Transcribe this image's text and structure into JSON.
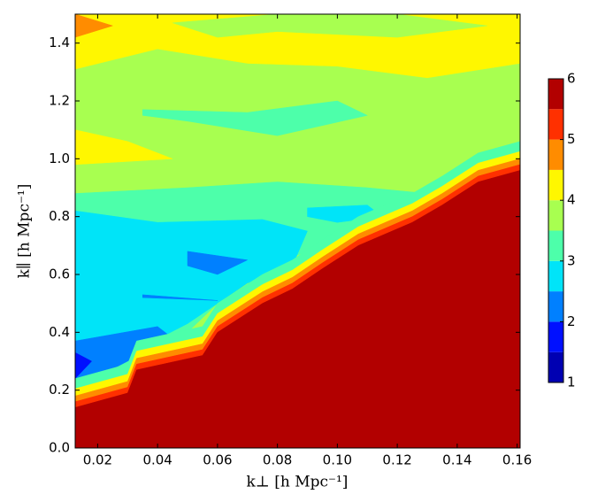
{
  "chart_data": {
    "type": "contourf",
    "xlabel": "k⊥ [h Mpc⁻¹]",
    "ylabel": "k∥ [h Mpc⁻¹]",
    "xlim": [
      0.0125,
      0.161
    ],
    "ylim": [
      0,
      1.5
    ],
    "xticks": [
      0.02,
      0.04,
      0.06,
      0.08,
      {
        "value": 0.1,
        "label": "0.10"
      },
      0.12,
      0.14,
      0.16
    ],
    "yticks": [
      {
        "value": 0,
        "label": "0.0"
      },
      0.2,
      0.4,
      0.6,
      0.8,
      {
        "value": 1,
        "label": "1.0"
      },
      1.2,
      1.4
    ],
    "colorbar": {
      "lim": [
        1,
        6
      ],
      "ticks": [
        1,
        2,
        3,
        4,
        5,
        6
      ],
      "levels": [
        1,
        1.5,
        2,
        2.5,
        3,
        3.5,
        4,
        4.5,
        5,
        5.5
      ],
      "colors": [
        "#0000b2",
        "#0010ff",
        "#0080ff",
        "#00e4f8",
        "#4dffaa",
        "#a8ff50",
        "#fff700",
        "#ff8c00",
        "#ff3000",
        "#b20000"
      ]
    },
    "regions": [
      {
        "level": 3.5,
        "points": [
          [
            0.0125,
            0
          ],
          [
            0.161,
            0
          ],
          [
            0.161,
            1.5
          ],
          [
            0.0125,
            1.5
          ]
        ]
      },
      {
        "level": 4,
        "points": [
          [
            0.0125,
            1.5
          ],
          [
            0.161,
            1.5
          ],
          [
            0.161,
            1.33
          ],
          [
            0.13,
            1.28
          ],
          [
            0.1,
            1.32
          ],
          [
            0.07,
            1.33
          ],
          [
            0.04,
            1.38
          ],
          [
            0.0125,
            1.31
          ]
        ]
      },
      {
        "level": 3.5,
        "points": [
          [
            0.045,
            1.47
          ],
          [
            0.08,
            1.5
          ],
          [
            0.12,
            1.5
          ],
          [
            0.15,
            1.46
          ],
          [
            0.12,
            1.42
          ],
          [
            0.08,
            1.44
          ],
          [
            0.06,
            1.42
          ]
        ]
      },
      {
        "level": 4.5,
        "points": [
          [
            0.0125,
            1.5
          ],
          [
            0.025,
            1.46
          ],
          [
            0.0125,
            1.42
          ]
        ]
      },
      {
        "level": 4,
        "points": [
          [
            0.0125,
            1.1
          ],
          [
            0.03,
            1.06
          ],
          [
            0.045,
            1.0
          ],
          [
            0.0125,
            0.98
          ]
        ]
      },
      {
        "level": 3,
        "points": [
          [
            0.0125,
            0.88
          ],
          [
            0.05,
            0.9
          ],
          [
            0.08,
            0.92
          ],
          [
            0.11,
            0.9
          ],
          [
            0.13,
            0.88
          ],
          [
            0.14,
            0.84
          ],
          [
            0.12,
            0.78
          ],
          [
            0.1,
            0.72
          ],
          [
            0.085,
            0.66
          ],
          [
            0.07,
            0.6
          ],
          [
            0.06,
            0.5
          ],
          [
            0.05,
            0.4
          ],
          [
            0.035,
            0.3
          ],
          [
            0.02,
            0.22
          ],
          [
            0.0125,
            0.18
          ]
        ]
      },
      {
        "level": 3,
        "points": [
          [
            0.035,
            1.17
          ],
          [
            0.07,
            1.16
          ],
          [
            0.1,
            1.2
          ],
          [
            0.11,
            1.15
          ],
          [
            0.08,
            1.08
          ],
          [
            0.05,
            1.13
          ],
          [
            0.035,
            1.15
          ]
        ]
      },
      {
        "level": 2.5,
        "points": [
          [
            0.0125,
            0.82
          ],
          [
            0.04,
            0.78
          ],
          [
            0.075,
            0.79
          ],
          [
            0.09,
            0.75
          ],
          [
            0.085,
            0.63
          ],
          [
            0.07,
            0.57
          ],
          [
            0.06,
            0.5
          ],
          [
            0.05,
            0.43
          ],
          [
            0.035,
            0.35
          ],
          [
            0.015,
            0.3
          ],
          [
            0.0125,
            0.28
          ]
        ]
      },
      {
        "level": 2.5,
        "points": [
          [
            0.09,
            0.83
          ],
          [
            0.11,
            0.84
          ],
          [
            0.115,
            0.8
          ],
          [
            0.1,
            0.78
          ],
          [
            0.09,
            0.8
          ]
        ]
      },
      {
        "level": 2,
        "points": [
          [
            0.0125,
            0.37
          ],
          [
            0.04,
            0.42
          ],
          [
            0.045,
            0.38
          ],
          [
            0.03,
            0.3
          ],
          [
            0.015,
            0.22
          ],
          [
            0.0125,
            0.2
          ]
        ]
      },
      {
        "level": 2,
        "points": [
          [
            0.05,
            0.68
          ],
          [
            0.07,
            0.65
          ],
          [
            0.06,
            0.6
          ],
          [
            0.05,
            0.63
          ]
        ]
      },
      {
        "level": 2,
        "points": [
          [
            0.035,
            0.53
          ],
          [
            0.06,
            0.51
          ],
          [
            0.035,
            0.52
          ]
        ]
      },
      {
        "level": 1.5,
        "points": [
          [
            0.0125,
            0.33
          ],
          [
            0.018,
            0.3
          ],
          [
            0.0125,
            0.24
          ]
        ]
      },
      {
        "level": 3,
        "points": [
          [
            0.0125,
            0
          ],
          [
            0.161,
            0
          ],
          [
            0.161,
            1.06
          ],
          [
            0.147,
            1.02
          ],
          [
            0.135,
            0.94
          ],
          [
            0.125,
            0.88
          ],
          [
            0.107,
            0.8
          ],
          [
            0.095,
            0.72
          ],
          [
            0.085,
            0.65
          ],
          [
            0.075,
            0.6
          ],
          [
            0.06,
            0.5
          ],
          [
            0.055,
            0.42
          ],
          [
            0.033,
            0.37
          ],
          [
            0.03,
            0.29
          ],
          [
            0.0125,
            0.24
          ]
        ]
      },
      {
        "level": 4,
        "points": [
          [
            0.0125,
            0
          ],
          [
            0.161,
            0
          ],
          [
            0.161,
            1.025
          ],
          [
            0.147,
            0.985
          ],
          [
            0.135,
            0.905
          ],
          [
            0.125,
            0.845
          ],
          [
            0.107,
            0.765
          ],
          [
            0.095,
            0.685
          ],
          [
            0.085,
            0.615
          ],
          [
            0.075,
            0.565
          ],
          [
            0.06,
            0.465
          ],
          [
            0.055,
            0.385
          ],
          [
            0.033,
            0.335
          ],
          [
            0.03,
            0.255
          ],
          [
            0.0125,
            0.205
          ]
        ]
      },
      {
        "level": 4.5,
        "points": [
          [
            0.0125,
            0
          ],
          [
            0.161,
            0
          ],
          [
            0.161,
            1.0
          ],
          [
            0.147,
            0.96
          ],
          [
            0.135,
            0.88
          ],
          [
            0.125,
            0.82
          ],
          [
            0.107,
            0.74
          ],
          [
            0.095,
            0.66
          ],
          [
            0.085,
            0.59
          ],
          [
            0.075,
            0.54
          ],
          [
            0.06,
            0.44
          ],
          [
            0.055,
            0.36
          ],
          [
            0.033,
            0.31
          ],
          [
            0.03,
            0.23
          ],
          [
            0.0125,
            0.18
          ]
        ]
      },
      {
        "level": 5,
        "points": [
          [
            0.0125,
            0
          ],
          [
            0.161,
            0
          ],
          [
            0.161,
            0.98
          ],
          [
            0.147,
            0.94
          ],
          [
            0.135,
            0.86
          ],
          [
            0.125,
            0.8
          ],
          [
            0.107,
            0.72
          ],
          [
            0.095,
            0.64
          ],
          [
            0.085,
            0.57
          ],
          [
            0.075,
            0.52
          ],
          [
            0.06,
            0.42
          ],
          [
            0.055,
            0.34
          ],
          [
            0.033,
            0.29
          ],
          [
            0.03,
            0.21
          ],
          [
            0.0125,
            0.16
          ]
        ]
      },
      {
        "level": 5.5,
        "points": [
          [
            0.0125,
            0
          ],
          [
            0.161,
            0
          ],
          [
            0.161,
            0.96
          ],
          [
            0.147,
            0.92
          ],
          [
            0.135,
            0.84
          ],
          [
            0.125,
            0.78
          ],
          [
            0.107,
            0.7
          ],
          [
            0.095,
            0.62
          ],
          [
            0.085,
            0.55
          ],
          [
            0.075,
            0.5
          ],
          [
            0.06,
            0.4
          ],
          [
            0.055,
            0.32
          ],
          [
            0.033,
            0.27
          ],
          [
            0.03,
            0.19
          ],
          [
            0.0125,
            0.14
          ]
        ]
      }
    ]
  }
}
